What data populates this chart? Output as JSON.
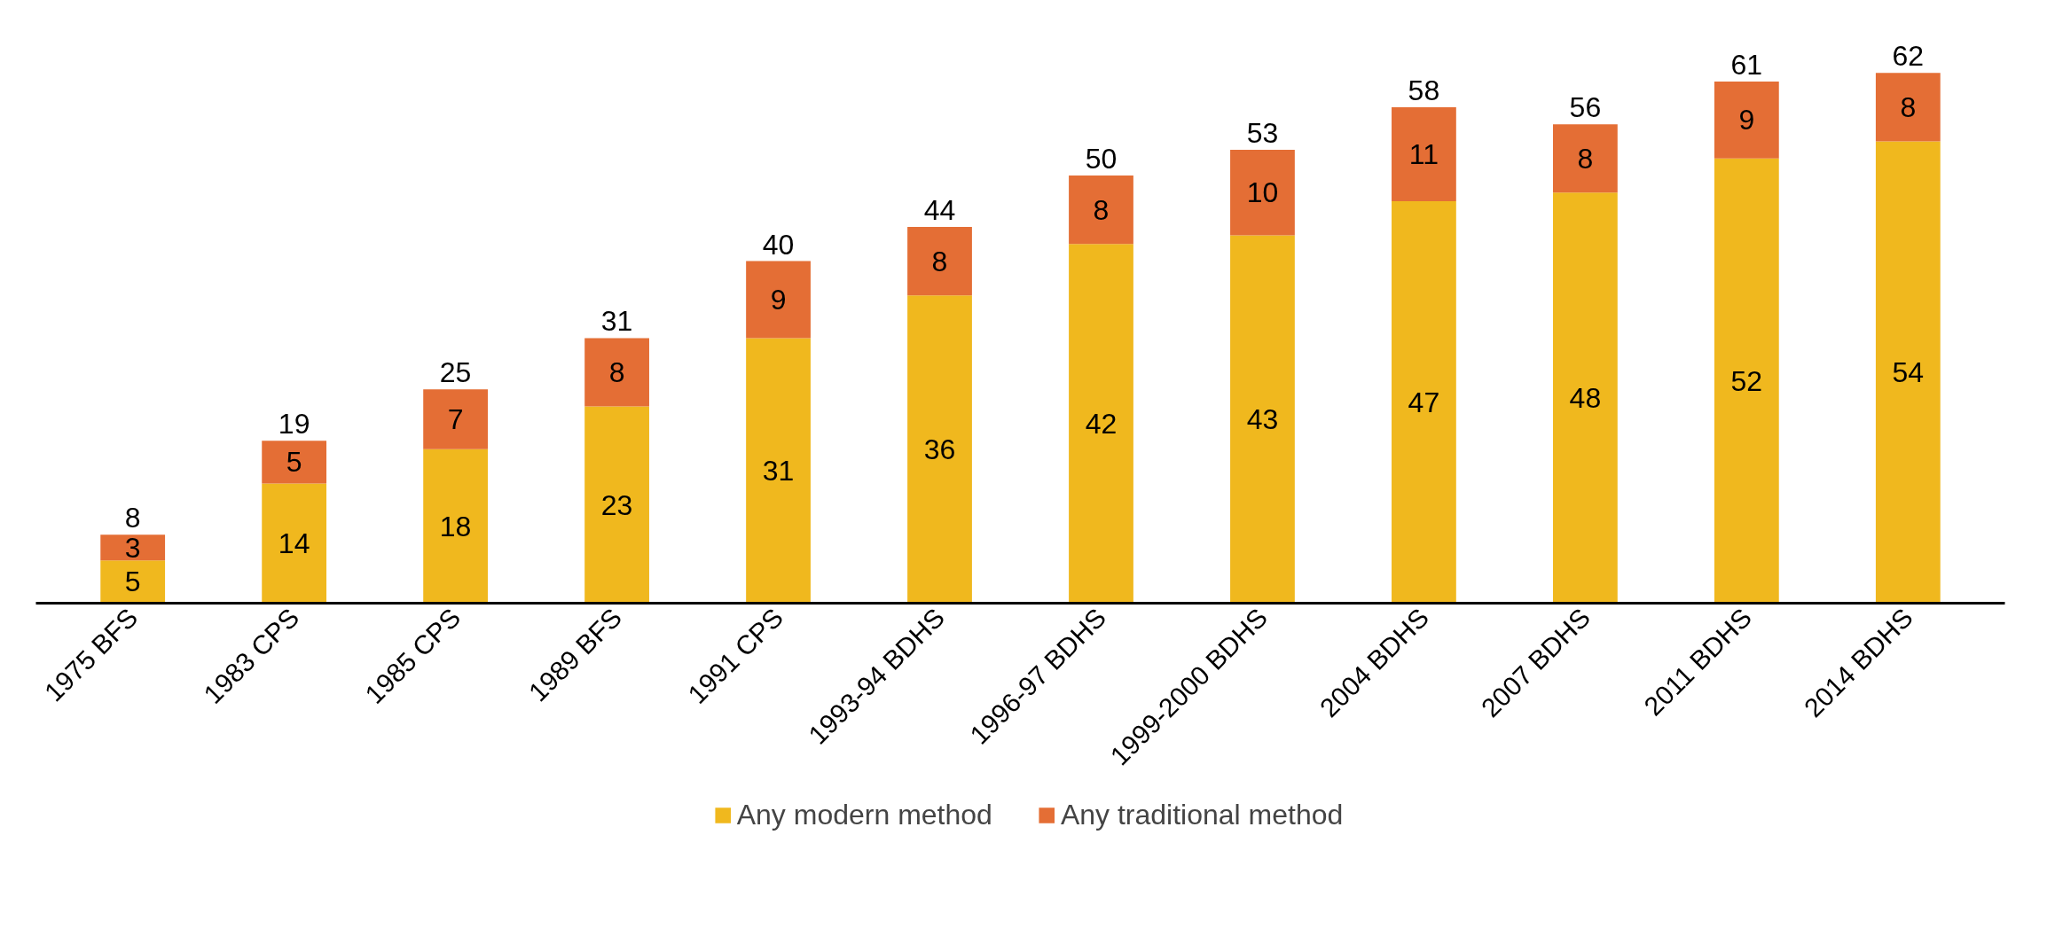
{
  "chart_data": {
    "type": "bar",
    "stacked": true,
    "data_labels": true,
    "tick_labels": "x",
    "grid": false,
    "legend": "bottom",
    "categories": [
      "1975 BFS",
      "1983 CPS",
      "1985 CPS",
      "1989 BFS",
      "1991 CPS",
      "1993-94 BDHS",
      "1996-97 BDHS",
      "1999-2000 BDHS",
      "2004 BDHS",
      "2007 BDHS",
      "2011 BDHS",
      "2014 BDHS"
    ],
    "series": [
      {
        "name": "Any modern method",
        "color": "#f0b81e",
        "values": [
          5,
          14,
          18,
          23,
          31,
          36,
          42,
          43,
          47,
          48,
          52,
          54
        ]
      },
      {
        "name": "Any traditional method",
        "color": "#e46e35",
        "values": [
          3,
          5,
          7,
          8,
          9,
          8,
          8,
          10,
          11,
          8,
          9,
          8
        ]
      }
    ],
    "totals": [
      "8",
      "19",
      "25",
      "31",
      "40",
      "44",
      "50",
      "53",
      "58",
      "56",
      "61",
      "62"
    ]
  }
}
